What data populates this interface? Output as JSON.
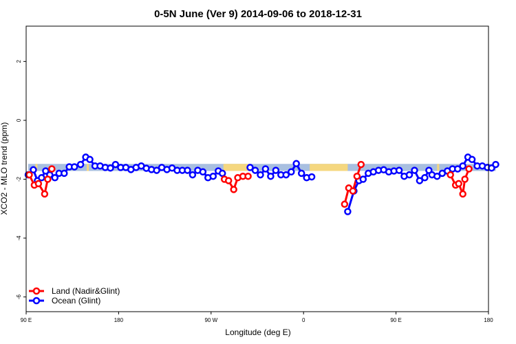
{
  "chart_data": {
    "type": "line",
    "title": "0-5N June (Ver 9)   2014-09-06 to 2018-12-31",
    "xlabel": "Longitude (deg E)",
    "ylabel": "XCO2 - MLO trend (ppm)",
    "xlim": [
      90,
      540
    ],
    "ylim": [
      -6.5,
      3.2
    ],
    "x_ticks": [
      {
        "value": 90,
        "label": "90 E"
      },
      {
        "value": 180,
        "label": "180"
      },
      {
        "value": 270,
        "label": "90 W"
      },
      {
        "value": 360,
        "label": "0"
      },
      {
        "value": 450,
        "label": "90 E"
      },
      {
        "value": 540,
        "label": "180"
      }
    ],
    "y_ticks": [
      {
        "value": 2,
        "label": "2"
      },
      {
        "value": 0,
        "label": "0"
      },
      {
        "value": -2,
        "label": "-2"
      },
      {
        "value": -4,
        "label": "-4"
      },
      {
        "value": -6,
        "label": "-6"
      }
    ],
    "band": {
      "y_low": -1.72,
      "y_high": -1.48,
      "ocean_color": "#a8bfe0",
      "land_color": "#f5d77f",
      "land_ranges": [
        [
          99,
          101
        ],
        [
          149,
          151
        ],
        [
          282,
          306
        ],
        [
          366,
          403
        ],
        [
          490,
          492
        ],
        [
          547,
          550
        ]
      ]
    },
    "series": [
      {
        "name": "Land (Nadir&Glint)",
        "color": "#ff0000",
        "segments": [
          [
            [
              93,
              -1.85
            ],
            [
              98,
              -2.2
            ],
            [
              102,
              -2.15
            ],
            [
              108,
              -2.5
            ],
            [
              111,
              -2.0
            ],
            [
              115,
              -1.65
            ]
          ],
          [
            [
              283,
              -2.0
            ],
            [
              287,
              -2.05
            ],
            [
              292,
              -2.35
            ],
            [
              296,
              -1.95
            ],
            [
              301,
              -1.9
            ],
            [
              306,
              -1.9
            ]
          ],
          [
            [
              400,
              -2.85
            ],
            [
              404,
              -2.3
            ],
            [
              408,
              -2.4
            ],
            [
              412,
              -1.9
            ],
            [
              416,
              -1.5
            ]
          ],
          [
            [
              503,
              -1.85
            ],
            [
              508,
              -2.2
            ],
            [
              511,
              -2.15
            ],
            [
              515,
              -2.5
            ],
            [
              517,
              -2.0
            ],
            [
              521,
              -1.65
            ]
          ]
        ]
      },
      {
        "name": "Ocean (Glint)",
        "color": "#0000ff",
        "segments": [
          [
            [
              92,
              -1.85
            ],
            [
              97,
              -1.68
            ],
            [
              101,
              -2.05
            ],
            [
              105,
              -1.95
            ],
            [
              109,
              -1.72
            ],
            [
              113,
              -1.85
            ],
            [
              118,
              -1.95
            ],
            [
              122,
              -1.8
            ],
            [
              127,
              -1.8
            ],
            [
              132,
              -1.58
            ],
            [
              137,
              -1.58
            ],
            [
              143,
              -1.5
            ],
            [
              148,
              -1.25
            ],
            [
              152,
              -1.33
            ],
            [
              157,
              -1.55
            ],
            [
              162,
              -1.55
            ],
            [
              167,
              -1.6
            ],
            [
              172,
              -1.62
            ],
            [
              177,
              -1.5
            ],
            [
              182,
              -1.6
            ],
            [
              187,
              -1.6
            ],
            [
              192,
              -1.67
            ],
            [
              197,
              -1.6
            ],
            [
              202,
              -1.55
            ],
            [
              207,
              -1.63
            ],
            [
              212,
              -1.67
            ],
            [
              217,
              -1.7
            ],
            [
              222,
              -1.6
            ],
            [
              227,
              -1.67
            ],
            [
              232,
              -1.62
            ],
            [
              237,
              -1.7
            ],
            [
              242,
              -1.7
            ],
            [
              247,
              -1.7
            ],
            [
              252,
              -1.85
            ],
            [
              257,
              -1.7
            ],
            [
              262,
              -1.75
            ],
            [
              267,
              -1.95
            ],
            [
              272,
              -1.9
            ],
            [
              277,
              -1.72
            ],
            [
              281,
              -1.8
            ]
          ],
          [
            [
              308,
              -1.6
            ],
            [
              313,
              -1.7
            ],
            [
              318,
              -1.85
            ],
            [
              323,
              -1.65
            ],
            [
              328,
              -1.9
            ],
            [
              333,
              -1.7
            ],
            [
              338,
              -1.85
            ],
            [
              343,
              -1.85
            ],
            [
              348,
              -1.75
            ],
            [
              353,
              -1.47
            ],
            [
              358,
              -1.8
            ],
            [
              363,
              -1.95
            ],
            [
              368,
              -1.92
            ]
          ],
          [
            [
              403,
              -3.1
            ],
            [
              409,
              -2.4
            ],
            [
              414,
              -2.05
            ],
            [
              418,
              -2.0
            ],
            [
              423,
              -1.8
            ],
            [
              428,
              -1.75
            ],
            [
              433,
              -1.7
            ],
            [
              438,
              -1.68
            ],
            [
              443,
              -1.75
            ],
            [
              448,
              -1.72
            ],
            [
              453,
              -1.7
            ],
            [
              458,
              -1.9
            ],
            [
              463,
              -1.85
            ],
            [
              468,
              -1.7
            ],
            [
              473,
              -2.05
            ],
            [
              478,
              -1.95
            ],
            [
              482,
              -1.7
            ],
            [
              485,
              -1.85
            ],
            [
              490,
              -1.9
            ],
            [
              495,
              -1.8
            ],
            [
              500,
              -1.72
            ],
            [
              505,
              -1.65
            ],
            [
              510,
              -1.65
            ],
            [
              515,
              -1.55
            ],
            [
              520,
              -1.25
            ],
            [
              524,
              -1.33
            ],
            [
              529,
              -1.55
            ],
            [
              534,
              -1.55
            ],
            [
              539,
              -1.6
            ],
            [
              543,
              -1.62
            ],
            [
              547,
              -1.5
            ]
          ]
        ]
      }
    ]
  }
}
